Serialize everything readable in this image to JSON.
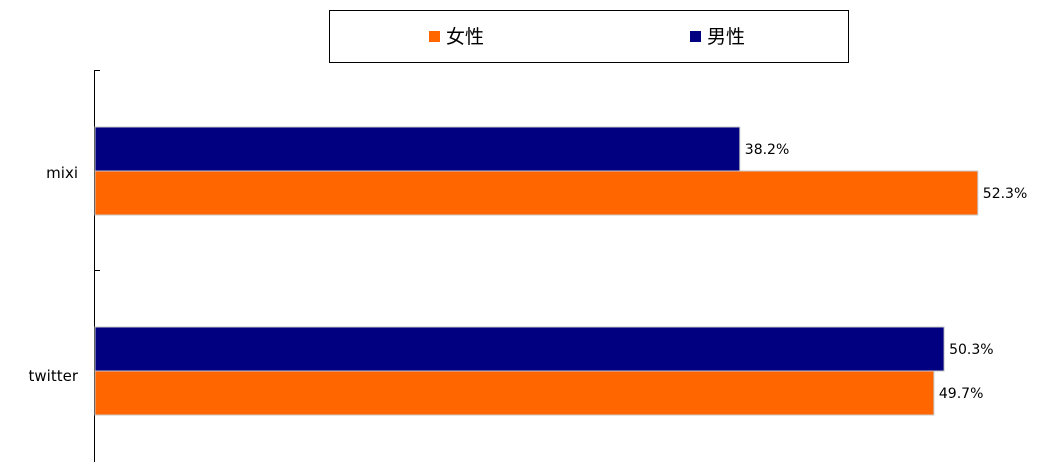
{
  "chart_data": {
    "type": "bar",
    "orientation": "horizontal",
    "categories": [
      "mixi",
      "twitter"
    ],
    "series": [
      {
        "name": "男性",
        "color": "#000080",
        "values": [
          38.2,
          50.3
        ],
        "labels": [
          "38.2%",
          "50.3%"
        ]
      },
      {
        "name": "女性",
        "color": "#ff6600",
        "values": [
          52.3,
          49.7
        ],
        "labels": [
          "52.3%",
          "49.7%"
        ]
      }
    ],
    "legend": {
      "position": "top",
      "order": [
        "女性",
        "男性"
      ]
    },
    "grid": false,
    "xlim": [
      0,
      53.2
    ]
  }
}
